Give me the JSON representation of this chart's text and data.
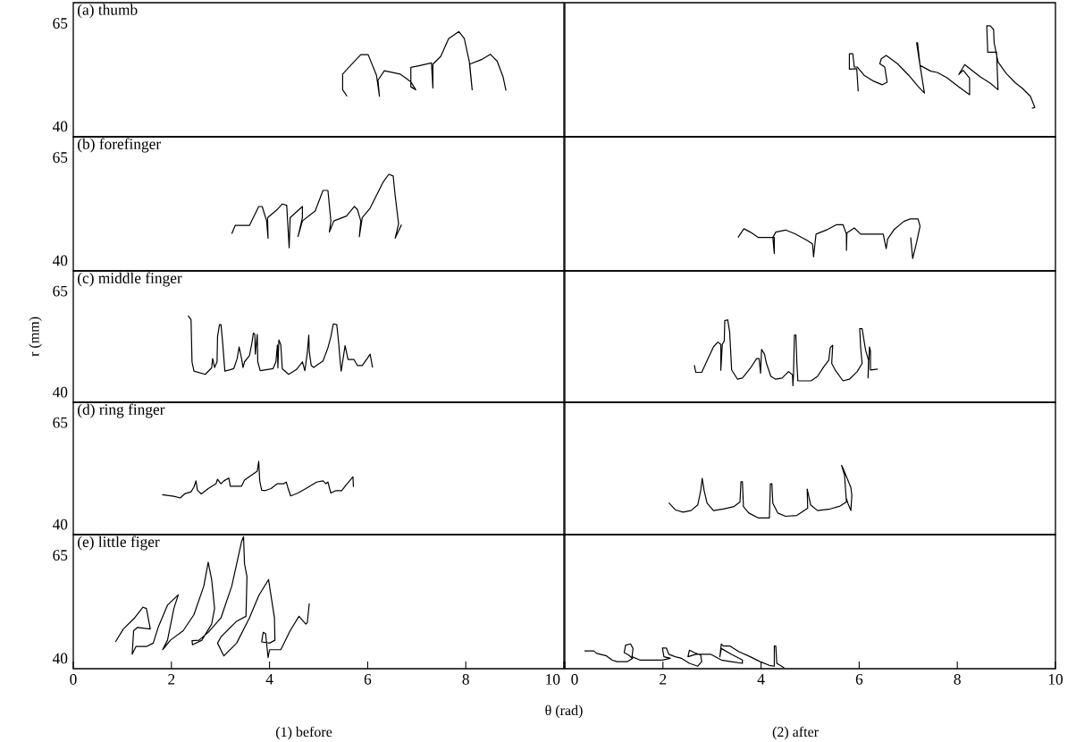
{
  "chart_data": [
    {
      "type": "line",
      "title": "(a) thumb",
      "color": "#000000",
      "xlim": [
        0,
        10
      ],
      "ylim": [
        37.5,
        70
      ],
      "yticks": [
        40,
        65
      ],
      "tick_labels": "y",
      "x": [
        5.58,
        5.49,
        5.49,
        5.7,
        5.86,
        6.01,
        6.18,
        6.24,
        6.21,
        6.34,
        6.66,
        6.88,
        6.98,
        6.88,
        6.88,
        7.04,
        7.3,
        7.33,
        7.33,
        7.49,
        7.65,
        7.86,
        7.97,
        8.07,
        8.13,
        8.08,
        8.32,
        8.5,
        8.64,
        8.76,
        8.82
      ],
      "values": [
        47.3,
        48.9,
        52.7,
        55.4,
        57.4,
        57.4,
        52.4,
        47.3,
        51.2,
        53.5,
        52.7,
        50.8,
        48.9,
        49.6,
        54.3,
        54.7,
        55.4,
        49.3,
        55.1,
        57.0,
        61.3,
        63.0,
        61.3,
        55.8,
        48.9,
        55.1,
        56.2,
        57.5,
        55.8,
        52.0,
        48.7
      ]
    },
    {
      "type": "line",
      "color": "#000000",
      "xlim": [
        0,
        10
      ],
      "ylim": [
        37.5,
        70
      ],
      "tick_labels": false,
      "x": [
        5.98,
        5.95,
        5.8,
        5.8,
        5.87,
        5.9,
        5.96,
        6.1,
        6.29,
        6.47,
        6.57,
        6.52,
        6.42,
        6.45,
        6.55,
        6.78,
        7.01,
        7.2,
        7.33,
        7.24,
        7.17,
        7.19,
        7.24,
        7.46,
        7.59,
        7.79,
        8.02,
        8.25,
        8.25,
        8.12,
        8.03,
        8.15,
        8.34,
        8.47,
        8.67,
        8.83,
        8.8,
        8.62,
        8.6,
        8.67,
        8.74,
        8.75,
        8.83,
        9.0,
        9.19,
        9.32,
        9.49,
        9.58,
        9.52
      ],
      "values": [
        48.5,
        54.0,
        53.9,
        57.6,
        57.6,
        54.4,
        54.4,
        52.4,
        51.0,
        50.1,
        50.7,
        54.4,
        55.2,
        56.4,
        57.2,
        55.2,
        52.4,
        49.7,
        48.1,
        54.8,
        60.3,
        60.3,
        54.8,
        53.4,
        53.1,
        51.8,
        49.7,
        47.7,
        51.7,
        53.6,
        52.6,
        55.0,
        53.2,
        52.0,
        50.5,
        48.9,
        58.0,
        58.0,
        64.4,
        64.4,
        63.5,
        60.3,
        55.6,
        52.8,
        50.5,
        49.3,
        47.3,
        44.6,
        44.4
      ]
    },
    {
      "type": "line",
      "title": "(b) forefinger",
      "color": "#000000",
      "xlim": [
        0,
        10
      ],
      "ylim": [
        37.5,
        70
      ],
      "yticks": [
        40,
        65
      ],
      "tick_labels": "y",
      "x": [
        3.23,
        3.3,
        3.59,
        3.78,
        3.85,
        3.94,
        3.97,
        3.96,
        4.16,
        4.26,
        4.35,
        4.4,
        4.42,
        4.67,
        4.67,
        4.58,
        4.67,
        4.93,
        5.09,
        5.19,
        5.25,
        5.22,
        5.31,
        5.57,
        5.73,
        5.79,
        5.86,
        5.83,
        5.89,
        6.05,
        6.31,
        6.43,
        6.52,
        6.56,
        6.63,
        6.56,
        6.69
      ],
      "values": [
        46.5,
        48.5,
        48.5,
        53.1,
        53.1,
        49.6,
        45.4,
        50.4,
        52.4,
        53.7,
        53.4,
        43.1,
        50.4,
        53.1,
        50.4,
        45.8,
        49.6,
        52.0,
        57.0,
        57.0,
        49.6,
        46.9,
        49.6,
        50.8,
        53.1,
        52.4,
        49.6,
        45.8,
        50.4,
        52.7,
        58.9,
        60.9,
        60.5,
        55.8,
        48.9,
        45.4,
        48.7
      ]
    },
    {
      "type": "line",
      "color": "#000000",
      "xlim": [
        0,
        10
      ],
      "ylim": [
        37.5,
        70
      ],
      "tick_labels": false,
      "x": [
        3.53,
        3.65,
        3.78,
        3.94,
        4.27,
        4.27,
        4.24,
        4.3,
        4.5,
        4.69,
        4.95,
        5.05,
        5.07,
        5.12,
        5.35,
        5.54,
        5.67,
        5.74,
        5.74,
        5.75,
        5.9,
        6.03,
        6.49,
        6.55,
        6.58,
        6.71,
        6.91,
        7.04,
        7.2,
        7.24,
        7.17,
        7.09,
        7.05
      ],
      "values": [
        45.6,
        47.7,
        46.9,
        45.6,
        45.6,
        41.7,
        45.6,
        46.9,
        47.4,
        46.5,
        44.8,
        44.0,
        40.9,
        46.4,
        47.5,
        48.7,
        48.7,
        46.4,
        42.5,
        46.7,
        47.9,
        46.4,
        46.4,
        42.9,
        45.2,
        47.5,
        49.5,
        50.1,
        50.1,
        48.3,
        44.4,
        40.5,
        45.6
      ]
    },
    {
      "type": "line",
      "title": "(c) middle finger",
      "ylabel": "r (mm)",
      "color": "#000000",
      "xlim": [
        0,
        10
      ],
      "ylim": [
        37.5,
        70
      ],
      "yticks": [
        40,
        65
      ],
      "tick_labels": "y",
      "x": [
        2.34,
        2.4,
        2.42,
        2.46,
        2.69,
        2.82,
        2.84,
        2.88,
        2.93,
        2.94,
        2.98,
        3.01,
        3.04,
        3.09,
        3.27,
        3.34,
        3.38,
        3.43,
        3.46,
        3.49,
        3.59,
        3.64,
        3.67,
        3.7,
        3.71,
        3.75,
        3.76,
        3.81,
        4.07,
        4.13,
        4.16,
        4.17,
        4.19,
        4.23,
        4.26,
        4.39,
        4.55,
        4.67,
        4.72,
        4.77,
        4.8,
        4.81,
        4.85,
        4.9,
        5.09,
        5.19,
        5.25,
        5.3,
        5.37,
        5.41,
        5.44,
        5.46,
        5.54,
        5.57,
        5.6,
        5.72,
        5.79,
        5.89,
        5.99,
        6.05,
        6.1
      ],
      "values": [
        58.9,
        57.9,
        47.5,
        45.2,
        44.4,
        46.0,
        48.3,
        46.1,
        47.5,
        53.7,
        56.7,
        56.7,
        52.9,
        45.2,
        45.8,
        48.3,
        51.2,
        48.3,
        46.1,
        47.5,
        49.0,
        52.1,
        54.6,
        54.3,
        49.4,
        54.3,
        47.5,
        45.3,
        45.8,
        47.5,
        51.7,
        46.0,
        52.9,
        51.7,
        45.8,
        44.4,
        45.6,
        47.5,
        45.3,
        49.8,
        54.1,
        50.0,
        46.6,
        46.1,
        47.7,
        51.0,
        53.7,
        56.9,
        56.7,
        52.1,
        47.5,
        45.2,
        51.5,
        49.8,
        48.1,
        48.1,
        46.6,
        46.6,
        48.3,
        49.4,
        46.1
      ]
    },
    {
      "type": "line",
      "color": "#000000",
      "xlim": [
        0,
        10
      ],
      "ylim": [
        37.5,
        70
      ],
      "tick_labels": false,
      "x": [
        2.64,
        2.67,
        2.79,
        2.93,
        3.03,
        3.12,
        3.18,
        3.18,
        3.21,
        3.25,
        3.26,
        3.32,
        3.36,
        3.38,
        3.4,
        3.52,
        3.62,
        3.78,
        3.91,
        3.96,
        3.99,
        4.01,
        4.07,
        4.11,
        4.2,
        4.3,
        4.43,
        4.56,
        4.64,
        4.65,
        4.66,
        4.68,
        4.71,
        4.73,
        4.75,
        5.02,
        5.15,
        5.28,
        5.38,
        5.41,
        5.46,
        5.44,
        5.51,
        5.67,
        5.8,
        5.96,
        6.06,
        6.03,
        6.01,
        6.06,
        6.13,
        6.19,
        6.18,
        6.21,
        6.23,
        6.23,
        6.38
      ],
      "values": [
        46.7,
        44.9,
        44.9,
        48.6,
        51.2,
        52.4,
        51.8,
        45.4,
        51.8,
        52.7,
        57.7,
        57.9,
        54.9,
        50.2,
        45.5,
        43.2,
        43.5,
        45.9,
        48.3,
        48.3,
        44.7,
        50.6,
        49.4,
        47.1,
        43.9,
        43.2,
        43.5,
        45.1,
        44.3,
        41.6,
        43.9,
        54.1,
        54.1,
        47.1,
        42.8,
        42.8,
        43.9,
        46.3,
        47.9,
        51.0,
        51.6,
        47.1,
        45.5,
        42.8,
        43.2,
        45.1,
        47.1,
        51.0,
        55.7,
        55.7,
        50.4,
        47.9,
        43.5,
        51.2,
        50.2,
        45.5,
        45.7
      ]
    },
    {
      "type": "line",
      "title": "(d) ring finger",
      "color": "#000000",
      "xlim": [
        0,
        10
      ],
      "ylim": [
        37.5,
        70
      ],
      "yticks": [
        40,
        65
      ],
      "tick_labels": "y",
      "x": [
        1.81,
        2.05,
        2.18,
        2.27,
        2.4,
        2.46,
        2.5,
        2.53,
        2.61,
        2.75,
        2.91,
        2.94,
        3.01,
        3.07,
        3.17,
        3.2,
        3.43,
        3.49,
        3.75,
        3.78,
        3.8,
        3.84,
        3.91,
        4.03,
        4.16,
        4.29,
        4.34,
        4.37,
        4.43,
        4.58,
        4.74,
        4.96,
        5.09,
        5.15,
        5.19,
        5.25,
        5.35,
        5.47,
        5.57,
        5.7,
        5.71
      ],
      "values": [
        47.3,
        46.9,
        46.5,
        47.5,
        48.0,
        49.2,
        50.7,
        48.4,
        47.5,
        48.8,
        50.0,
        51.1,
        50.0,
        50.7,
        51.4,
        49.4,
        49.4,
        50.9,
        53.1,
        55.5,
        50.7,
        48.4,
        48.3,
        48.8,
        50.0,
        50.0,
        50.4,
        49.2,
        47.0,
        47.7,
        48.8,
        50.4,
        50.7,
        50.0,
        50.4,
        47.7,
        48.3,
        48.3,
        49.8,
        51.7,
        49.2
      ]
    },
    {
      "type": "line",
      "color": "#000000",
      "xlim": [
        0,
        10
      ],
      "ylim": [
        37.5,
        70
      ],
      "tick_labels": false,
      "x": [
        2.12,
        2.25,
        2.41,
        2.57,
        2.71,
        2.77,
        2.8,
        2.84,
        2.9,
        3.03,
        3.23,
        3.45,
        3.57,
        3.59,
        3.62,
        3.64,
        3.75,
        3.94,
        4.17,
        4.19,
        4.22,
        4.24,
        4.34,
        4.5,
        4.73,
        4.95,
        4.94,
        5.01,
        5.15,
        5.41,
        5.61,
        5.74,
        5.7,
        5.64,
        5.67,
        5.83,
        5.85,
        5.83,
        5.77,
        5.74
      ],
      "values": [
        45.3,
        43.6,
        43.0,
        43.4,
        44.8,
        48.3,
        51.3,
        48.3,
        45.2,
        43.4,
        43.8,
        44.4,
        45.5,
        50.5,
        50.5,
        44.4,
        42.8,
        41.6,
        41.6,
        50.0,
        50.0,
        45.2,
        42.8,
        42.0,
        42.2,
        44.0,
        48.7,
        44.8,
        43.4,
        43.8,
        44.5,
        45.5,
        52.2,
        54.5,
        53.8,
        49.1,
        47.1,
        43.4,
        45.2,
        46.3
      ]
    },
    {
      "type": "line",
      "title": "(e) little figer",
      "xlabel": "θ (rad)",
      "annotations": [
        "(1) before"
      ],
      "color": "#000000",
      "xlim": [
        0,
        10
      ],
      "ylim": [
        37.5,
        70
      ],
      "xticks": [
        0,
        2,
        4,
        6,
        8,
        10
      ],
      "yticks": [
        40,
        65
      ],
      "x": [
        0.86,
        1.02,
        1.25,
        1.42,
        1.49,
        1.54,
        1.57,
        1.31,
        1.23,
        1.2,
        1.28,
        1.5,
        1.63,
        1.73,
        1.92,
        2.14,
        2.05,
        1.92,
        1.82,
        1.98,
        2.24,
        2.46,
        2.66,
        2.75,
        2.82,
        2.88,
        2.82,
        2.62,
        2.43,
        2.42,
        2.56,
        2.75,
        3.01,
        3.23,
        3.43,
        3.47,
        3.49,
        3.54,
        3.52,
        3.33,
        3.01,
        2.94,
        3.07,
        3.33,
        3.59,
        3.78,
        3.98,
        4.03,
        4.1,
        4.11,
        4.0,
        3.84,
        3.87,
        3.92,
        3.97,
        4.0,
        4.23,
        4.42,
        4.6,
        4.74,
        4.77,
        4.81
      ],
      "values": [
        44.0,
        47.1,
        49.8,
        52.4,
        52.1,
        49.0,
        47.1,
        47.5,
        46.7,
        41.0,
        42.9,
        42.9,
        43.7,
        47.5,
        52.9,
        55.4,
        52.1,
        44.4,
        42.1,
        44.4,
        46.7,
        50.6,
        57.5,
        63.3,
        59.1,
        52.1,
        48.3,
        44.4,
        43.3,
        44.3,
        44.4,
        46.3,
        49.8,
        57.5,
        68.3,
        69.5,
        62.9,
        59.8,
        50.2,
        49.0,
        45.2,
        43.7,
        40.6,
        43.7,
        49.8,
        55.2,
        59.1,
        55.2,
        49.8,
        44.4,
        43.7,
        44.0,
        46.3,
        46.0,
        40.2,
        42.1,
        42.1,
        46.7,
        50.2,
        48.3,
        48.7,
        53.3
      ]
    },
    {
      "type": "line",
      "annotations": [
        "(2) after"
      ],
      "color": "#000000",
      "xlim": [
        0,
        10
      ],
      "ylim": [
        37.5,
        70
      ],
      "xticks": [
        0,
        2,
        4,
        6,
        8,
        10
      ],
      "tick_labels": "x",
      "x": [
        0.4,
        0.59,
        0.65,
        0.85,
        0.96,
        1.06,
        1.27,
        1.38,
        1.3,
        1.21,
        1.24,
        1.34,
        1.39,
        1.37,
        1.53,
        1.99,
        2.15,
        2.02,
        1.99,
        2.07,
        2.12,
        2.25,
        2.38,
        2.54,
        2.71,
        2.79,
        2.77,
        2.64,
        2.54,
        2.51,
        2.67,
        2.97,
        3.19,
        3.39,
        3.62,
        3.62,
        3.39,
        3.19,
        3.16,
        3.19,
        3.23,
        3.36,
        3.55,
        3.78,
        3.98,
        4.17,
        4.27,
        4.27,
        4.3,
        4.32,
        4.47
      ],
      "values": [
        41.8,
        41.8,
        41.2,
        40.6,
        39.6,
        39.2,
        39.2,
        40.0,
        40.8,
        41.4,
        43.2,
        43.5,
        42.4,
        40.4,
        39.6,
        39.6,
        40.0,
        40.4,
        42.5,
        42.5,
        41.0,
        40.4,
        40.0,
        38.8,
        38.1,
        39.2,
        40.8,
        41.4,
        42.0,
        40.4,
        41.0,
        41.0,
        39.6,
        39.2,
        38.8,
        39.6,
        41.0,
        42.4,
        40.4,
        43.5,
        43.0,
        43.0,
        41.6,
        40.4,
        39.2,
        38.3,
        38.1,
        43.0,
        43.0,
        38.8,
        37.7
      ]
    }
  ]
}
